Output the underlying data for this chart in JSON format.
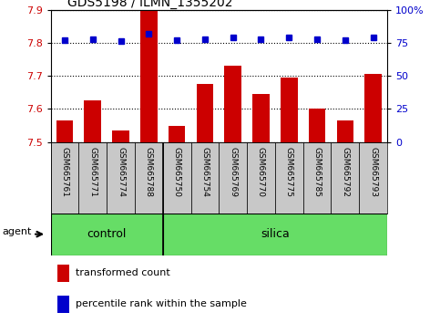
{
  "title": "GDS5198 / ILMN_1355202",
  "samples": [
    "GSM665761",
    "GSM665771",
    "GSM665774",
    "GSM665788",
    "GSM665750",
    "GSM665754",
    "GSM665769",
    "GSM665770",
    "GSM665775",
    "GSM665785",
    "GSM665792",
    "GSM665793"
  ],
  "red_values": [
    7.565,
    7.625,
    7.535,
    7.895,
    7.548,
    7.675,
    7.73,
    7.645,
    7.695,
    7.6,
    7.565,
    7.705
  ],
  "blue_values": [
    77,
    78,
    76,
    82,
    77,
    78,
    79,
    78,
    79,
    78,
    77,
    79
  ],
  "group_separator": 4,
  "ylim_left": [
    7.5,
    7.9
  ],
  "ylim_right": [
    0,
    100
  ],
  "yticks_left": [
    7.5,
    7.6,
    7.7,
    7.8,
    7.9
  ],
  "yticks_right": [
    0,
    25,
    50,
    75,
    100
  ],
  "bar_color": "#CC0000",
  "dot_color": "#0000CC",
  "bar_baseline": 7.5,
  "agent_label": "agent",
  "legend_items": [
    "transformed count",
    "percentile rank within the sample"
  ],
  "green_bar_color": "#66DD66",
  "label_bg_color": "#C8C8C8",
  "control_label": "control",
  "silica_label": "silica"
}
